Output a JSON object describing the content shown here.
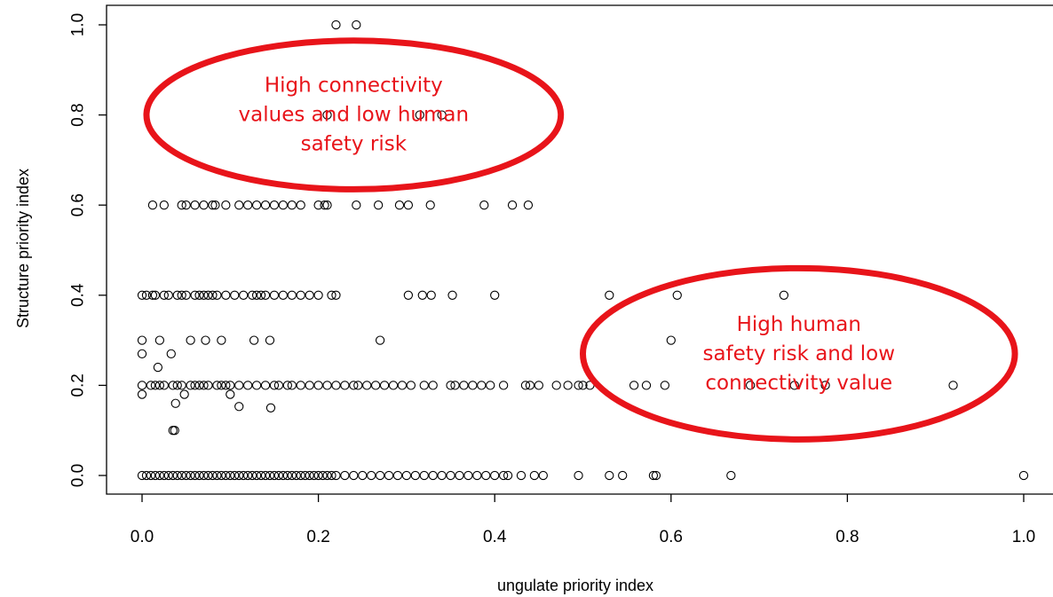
{
  "chart_data": {
    "type": "scatter",
    "title": "",
    "xlabel": "ungulate priority index",
    "ylabel": "Structure priority index",
    "xlim": [
      0.0,
      1.0
    ],
    "ylim": [
      0.0,
      1.0
    ],
    "xticks": [
      "0.0",
      "0.2",
      "0.4",
      "0.6",
      "0.8",
      "1.0"
    ],
    "yticks": [
      "0.0",
      "0.2",
      "0.4",
      "0.6",
      "0.8",
      "1.0"
    ],
    "grid": false,
    "marker": "open-circle",
    "annotation_color": "#e8141a",
    "annotations": [
      {
        "text_lines": [
          "High connectivity",
          "values and low human",
          "safety risk"
        ],
        "ellipse_center": [
          0.24,
          0.8
        ],
        "ellipse_radius": [
          0.235,
          0.165
        ]
      },
      {
        "text_lines": [
          "High human",
          "safety risk and low",
          "connectivity value"
        ],
        "ellipse_center": [
          0.745,
          0.27
        ],
        "ellipse_radius": [
          0.245,
          0.19
        ]
      }
    ],
    "points": [
      [
        0.22,
        1.0
      ],
      [
        0.243,
        1.0
      ],
      [
        0.21,
        0.8
      ],
      [
        0.315,
        0.8
      ],
      [
        0.34,
        0.8
      ],
      [
        0.012,
        0.6
      ],
      [
        0.025,
        0.6
      ],
      [
        0.045,
        0.6
      ],
      [
        0.05,
        0.6
      ],
      [
        0.06,
        0.6
      ],
      [
        0.07,
        0.6
      ],
      [
        0.08,
        0.6
      ],
      [
        0.083,
        0.6
      ],
      [
        0.095,
        0.6
      ],
      [
        0.11,
        0.6
      ],
      [
        0.12,
        0.6
      ],
      [
        0.13,
        0.6
      ],
      [
        0.14,
        0.6
      ],
      [
        0.15,
        0.6
      ],
      [
        0.16,
        0.6
      ],
      [
        0.17,
        0.6
      ],
      [
        0.18,
        0.6
      ],
      [
        0.2,
        0.6
      ],
      [
        0.207,
        0.6
      ],
      [
        0.21,
        0.6
      ],
      [
        0.243,
        0.6
      ],
      [
        0.268,
        0.6
      ],
      [
        0.292,
        0.6
      ],
      [
        0.302,
        0.6
      ],
      [
        0.327,
        0.6
      ],
      [
        0.388,
        0.6
      ],
      [
        0.42,
        0.6
      ],
      [
        0.438,
        0.6
      ],
      [
        0.0,
        0.4
      ],
      [
        0.005,
        0.4
      ],
      [
        0.012,
        0.4
      ],
      [
        0.015,
        0.4
      ],
      [
        0.025,
        0.4
      ],
      [
        0.03,
        0.4
      ],
      [
        0.04,
        0.4
      ],
      [
        0.045,
        0.4
      ],
      [
        0.05,
        0.4
      ],
      [
        0.06,
        0.4
      ],
      [
        0.065,
        0.4
      ],
      [
        0.07,
        0.4
      ],
      [
        0.075,
        0.4
      ],
      [
        0.08,
        0.4
      ],
      [
        0.085,
        0.4
      ],
      [
        0.095,
        0.4
      ],
      [
        0.105,
        0.4
      ],
      [
        0.115,
        0.4
      ],
      [
        0.125,
        0.4
      ],
      [
        0.13,
        0.4
      ],
      [
        0.135,
        0.4
      ],
      [
        0.14,
        0.4
      ],
      [
        0.15,
        0.4
      ],
      [
        0.16,
        0.4
      ],
      [
        0.17,
        0.4
      ],
      [
        0.18,
        0.4
      ],
      [
        0.19,
        0.4
      ],
      [
        0.2,
        0.4
      ],
      [
        0.215,
        0.4
      ],
      [
        0.22,
        0.4
      ],
      [
        0.302,
        0.4
      ],
      [
        0.318,
        0.4
      ],
      [
        0.328,
        0.4
      ],
      [
        0.352,
        0.4
      ],
      [
        0.4,
        0.4
      ],
      [
        0.53,
        0.4
      ],
      [
        0.607,
        0.4
      ],
      [
        0.728,
        0.4
      ],
      [
        0.0,
        0.3
      ],
      [
        0.02,
        0.3
      ],
      [
        0.055,
        0.3
      ],
      [
        0.072,
        0.3
      ],
      [
        0.09,
        0.3
      ],
      [
        0.127,
        0.3
      ],
      [
        0.145,
        0.3
      ],
      [
        0.27,
        0.3
      ],
      [
        0.6,
        0.3
      ],
      [
        0.0,
        0.27
      ],
      [
        0.033,
        0.27
      ],
      [
        0.018,
        0.24
      ],
      [
        0.0,
        0.2
      ],
      [
        0.01,
        0.2
      ],
      [
        0.015,
        0.2
      ],
      [
        0.02,
        0.2
      ],
      [
        0.025,
        0.2
      ],
      [
        0.035,
        0.2
      ],
      [
        0.04,
        0.2
      ],
      [
        0.045,
        0.2
      ],
      [
        0.055,
        0.2
      ],
      [
        0.06,
        0.2
      ],
      [
        0.065,
        0.2
      ],
      [
        0.07,
        0.2
      ],
      [
        0.075,
        0.2
      ],
      [
        0.085,
        0.2
      ],
      [
        0.09,
        0.2
      ],
      [
        0.095,
        0.2
      ],
      [
        0.1,
        0.2
      ],
      [
        0.11,
        0.2
      ],
      [
        0.12,
        0.2
      ],
      [
        0.13,
        0.2
      ],
      [
        0.14,
        0.2
      ],
      [
        0.15,
        0.2
      ],
      [
        0.155,
        0.2
      ],
      [
        0.165,
        0.2
      ],
      [
        0.17,
        0.2
      ],
      [
        0.18,
        0.2
      ],
      [
        0.19,
        0.2
      ],
      [
        0.2,
        0.2
      ],
      [
        0.21,
        0.2
      ],
      [
        0.22,
        0.2
      ],
      [
        0.23,
        0.2
      ],
      [
        0.24,
        0.2
      ],
      [
        0.245,
        0.2
      ],
      [
        0.255,
        0.2
      ],
      [
        0.265,
        0.2
      ],
      [
        0.275,
        0.2
      ],
      [
        0.285,
        0.2
      ],
      [
        0.295,
        0.2
      ],
      [
        0.305,
        0.2
      ],
      [
        0.32,
        0.2
      ],
      [
        0.33,
        0.2
      ],
      [
        0.35,
        0.2
      ],
      [
        0.355,
        0.2
      ],
      [
        0.365,
        0.2
      ],
      [
        0.375,
        0.2
      ],
      [
        0.385,
        0.2
      ],
      [
        0.395,
        0.2
      ],
      [
        0.41,
        0.2
      ],
      [
        0.435,
        0.2
      ],
      [
        0.44,
        0.2
      ],
      [
        0.45,
        0.2
      ],
      [
        0.47,
        0.2
      ],
      [
        0.483,
        0.2
      ],
      [
        0.495,
        0.2
      ],
      [
        0.5,
        0.2
      ],
      [
        0.508,
        0.2
      ],
      [
        0.558,
        0.2
      ],
      [
        0.572,
        0.2
      ],
      [
        0.593,
        0.2
      ],
      [
        0.69,
        0.2
      ],
      [
        0.74,
        0.2
      ],
      [
        0.775,
        0.2
      ],
      [
        0.92,
        0.2
      ],
      [
        0.0,
        0.18
      ],
      [
        0.048,
        0.18
      ],
      [
        0.1,
        0.18
      ],
      [
        0.038,
        0.16
      ],
      [
        0.11,
        0.153
      ],
      [
        0.146,
        0.15
      ],
      [
        0.035,
        0.1
      ],
      [
        0.037,
        0.1
      ],
      [
        0.0,
        0.0
      ],
      [
        0.005,
        0.0
      ],
      [
        0.01,
        0.0
      ],
      [
        0.015,
        0.0
      ],
      [
        0.02,
        0.0
      ],
      [
        0.025,
        0.0
      ],
      [
        0.03,
        0.0
      ],
      [
        0.035,
        0.0
      ],
      [
        0.04,
        0.0
      ],
      [
        0.045,
        0.0
      ],
      [
        0.05,
        0.0
      ],
      [
        0.055,
        0.0
      ],
      [
        0.06,
        0.0
      ],
      [
        0.065,
        0.0
      ],
      [
        0.07,
        0.0
      ],
      [
        0.075,
        0.0
      ],
      [
        0.08,
        0.0
      ],
      [
        0.085,
        0.0
      ],
      [
        0.09,
        0.0
      ],
      [
        0.095,
        0.0
      ],
      [
        0.1,
        0.0
      ],
      [
        0.105,
        0.0
      ],
      [
        0.11,
        0.0
      ],
      [
        0.115,
        0.0
      ],
      [
        0.12,
        0.0
      ],
      [
        0.125,
        0.0
      ],
      [
        0.13,
        0.0
      ],
      [
        0.135,
        0.0
      ],
      [
        0.14,
        0.0
      ],
      [
        0.145,
        0.0
      ],
      [
        0.15,
        0.0
      ],
      [
        0.155,
        0.0
      ],
      [
        0.16,
        0.0
      ],
      [
        0.165,
        0.0
      ],
      [
        0.17,
        0.0
      ],
      [
        0.175,
        0.0
      ],
      [
        0.18,
        0.0
      ],
      [
        0.185,
        0.0
      ],
      [
        0.19,
        0.0
      ],
      [
        0.195,
        0.0
      ],
      [
        0.2,
        0.0
      ],
      [
        0.205,
        0.0
      ],
      [
        0.21,
        0.0
      ],
      [
        0.215,
        0.0
      ],
      [
        0.22,
        0.0
      ],
      [
        0.23,
        0.0
      ],
      [
        0.24,
        0.0
      ],
      [
        0.25,
        0.0
      ],
      [
        0.26,
        0.0
      ],
      [
        0.27,
        0.0
      ],
      [
        0.28,
        0.0
      ],
      [
        0.29,
        0.0
      ],
      [
        0.3,
        0.0
      ],
      [
        0.31,
        0.0
      ],
      [
        0.32,
        0.0
      ],
      [
        0.33,
        0.0
      ],
      [
        0.34,
        0.0
      ],
      [
        0.35,
        0.0
      ],
      [
        0.36,
        0.0
      ],
      [
        0.37,
        0.0
      ],
      [
        0.38,
        0.0
      ],
      [
        0.39,
        0.0
      ],
      [
        0.4,
        0.0
      ],
      [
        0.41,
        0.0
      ],
      [
        0.415,
        0.0
      ],
      [
        0.43,
        0.0
      ],
      [
        0.445,
        0.0
      ],
      [
        0.455,
        0.0
      ],
      [
        0.495,
        0.0
      ],
      [
        0.53,
        0.0
      ],
      [
        0.545,
        0.0
      ],
      [
        0.58,
        0.0
      ],
      [
        0.583,
        0.0
      ],
      [
        0.668,
        0.0
      ],
      [
        1.0,
        0.0
      ]
    ]
  }
}
